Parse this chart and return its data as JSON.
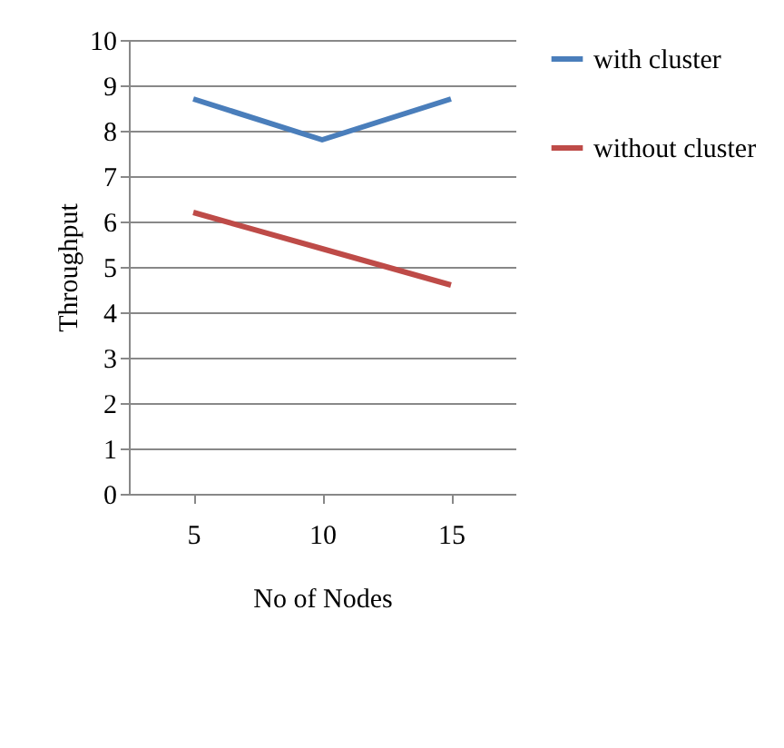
{
  "chart_data": {
    "type": "line",
    "xlabel": "No of Nodes",
    "ylabel": "Throughput",
    "categories": [
      "5",
      "10",
      "15"
    ],
    "series": [
      {
        "name": "with cluster",
        "color": "#4a7ebb",
        "values": [
          8.7,
          7.8,
          8.7
        ]
      },
      {
        "name": "without cluster",
        "color": "#be4b48",
        "values": [
          6.2,
          5.4,
          4.6
        ]
      }
    ],
    "ylim": [
      0,
      10
    ],
    "yticks": [
      0,
      1,
      2,
      3,
      4,
      5,
      6,
      7,
      8,
      9,
      10
    ],
    "grid": "y",
    "legend": "right",
    "marker": "none",
    "line_style": "solid"
  }
}
